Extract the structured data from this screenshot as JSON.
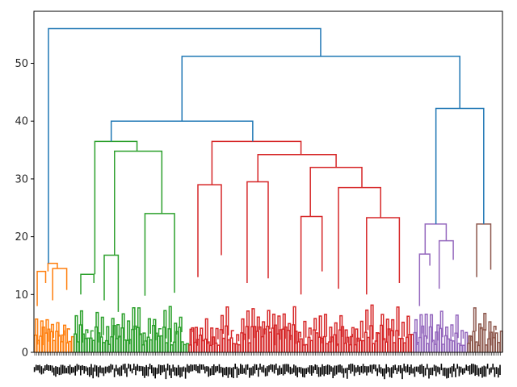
{
  "chart_data": {
    "type": "dendrogram",
    "title": "",
    "xlabel": "",
    "ylabel": "",
    "ylim": [
      0,
      59
    ],
    "yticks": [
      0,
      10,
      20,
      30,
      40,
      50
    ],
    "grid": false,
    "above_threshold_color": "#1f77b4",
    "clusters": [
      {
        "color": "#ff7f0e",
        "leaf_span": [
          0.0,
          0.085
        ]
      },
      {
        "color": "#2ca02c",
        "leaf_span": [
          0.085,
          0.33
        ]
      },
      {
        "color": "#d62728",
        "leaf_span": [
          0.33,
          0.81
        ]
      },
      {
        "color": "#9467bd",
        "leaf_span": [
          0.81,
          0.925
        ]
      },
      {
        "color": "#8c564b",
        "leaf_span": [
          0.925,
          1.0
        ]
      }
    ],
    "merges": [
      {
        "name": "orange-top",
        "color": "#ff7f0e",
        "height": 15.4,
        "left": {
          "x": 0.03,
          "h": 14.0
        },
        "right": {
          "x": 0.05,
          "h": 14.5
        }
      },
      {
        "name": "orange-left",
        "color": "#ff7f0e",
        "height": 14.0,
        "left": {
          "x": 0.007,
          "h": 8.0
        },
        "right": {
          "x": 0.025,
          "h": 12.0
        }
      },
      {
        "name": "orange-right",
        "color": "#ff7f0e",
        "height": 14.5,
        "left": {
          "x": 0.04,
          "h": 9.0
        },
        "right": {
          "x": 0.07,
          "h": 10.8
        }
      },
      {
        "name": "green-top",
        "color": "#2ca02c",
        "height": 36.5,
        "left": {
          "x": 0.13,
          "h": 13.5
        },
        "right": {
          "x": 0.22,
          "h": 34.8
        }
      },
      {
        "name": "green-left",
        "color": "#2ca02c",
        "height": 13.5,
        "left": {
          "x": 0.1,
          "h": 10.0
        },
        "right": {
          "x": 0.128,
          "h": 12.0
        }
      },
      {
        "name": "green-right",
        "color": "#2ca02c",
        "height": 34.8,
        "left": {
          "x": 0.172,
          "h": 16.8
        },
        "right": {
          "x": 0.273,
          "h": 24.0
        }
      },
      {
        "name": "green-mid",
        "color": "#2ca02c",
        "height": 16.8,
        "left": {
          "x": 0.15,
          "h": 9.0
        },
        "right": {
          "x": 0.18,
          "h": 7.0
        }
      },
      {
        "name": "green-mid-right",
        "color": "#2ca02c",
        "height": 24.0,
        "left": {
          "x": 0.237,
          "h": 9.8
        },
        "right": {
          "x": 0.3,
          "h": 10.3
        }
      },
      {
        "name": "red-top",
        "color": "#d62728",
        "height": 36.5,
        "left": {
          "x": 0.38,
          "h": 29.0
        },
        "right": {
          "x": 0.57,
          "h": 34.2
        }
      },
      {
        "name": "red-left",
        "color": "#d62728",
        "height": 29.0,
        "left": {
          "x": 0.35,
          "h": 13.0
        },
        "right": {
          "x": 0.4,
          "h": 16.8
        }
      },
      {
        "name": "red-right",
        "color": "#d62728",
        "height": 34.2,
        "left": {
          "x": 0.478,
          "h": 29.5
        },
        "right": {
          "x": 0.645,
          "h": 32.0
        }
      },
      {
        "name": "red-mid",
        "color": "#d62728",
        "height": 29.5,
        "left": {
          "x": 0.455,
          "h": 12.0
        },
        "right": {
          "x": 0.5,
          "h": 12.8
        }
      },
      {
        "name": "red-right2",
        "color": "#d62728",
        "height": 32.0,
        "left": {
          "x": 0.59,
          "h": 23.5
        },
        "right": {
          "x": 0.7,
          "h": 28.5
        }
      },
      {
        "name": "red-r3a",
        "color": "#d62728",
        "height": 23.5,
        "left": {
          "x": 0.57,
          "h": 10.0
        },
        "right": {
          "x": 0.615,
          "h": 14.0
        }
      },
      {
        "name": "red-r3b",
        "color": "#d62728",
        "height": 28.5,
        "left": {
          "x": 0.65,
          "h": 11.0
        },
        "right": {
          "x": 0.74,
          "h": 23.3
        }
      },
      {
        "name": "red-r4",
        "color": "#d62728",
        "height": 23.3,
        "left": {
          "x": 0.71,
          "h": 10.0
        },
        "right": {
          "x": 0.78,
          "h": 12.0
        }
      },
      {
        "name": "purple-top",
        "color": "#9467bd",
        "height": 22.2,
        "left": {
          "x": 0.835,
          "h": 17.0
        },
        "right": {
          "x": 0.88,
          "h": 19.3
        }
      },
      {
        "name": "purple-left",
        "color": "#9467bd",
        "height": 17.0,
        "left": {
          "x": 0.823,
          "h": 8.0
        },
        "right": {
          "x": 0.845,
          "h": 15.0
        }
      },
      {
        "name": "purple-right",
        "color": "#9467bd",
        "height": 19.3,
        "left": {
          "x": 0.865,
          "h": 11.0
        },
        "right": {
          "x": 0.895,
          "h": 16.0
        }
      },
      {
        "name": "brown-top",
        "color": "#8c564b",
        "height": 22.2,
        "left": {
          "x": 0.945,
          "h": 13.0
        },
        "right": {
          "x": 0.975,
          "h": 14.3
        }
      },
      {
        "name": "upper-1",
        "color": "#1f77b4",
        "height": 40.0,
        "left": {
          "x": 0.165,
          "h": 36.5
        },
        "right": {
          "x": 0.467,
          "h": 36.5
        }
      },
      {
        "name": "upper-2",
        "color": "#1f77b4",
        "height": 42.2,
        "left": {
          "x": 0.858,
          "h": 22.2
        },
        "right": {
          "x": 0.96,
          "h": 22.2
        }
      },
      {
        "name": "upper-3",
        "color": "#1f77b4",
        "height": 51.2,
        "left": {
          "x": 0.316,
          "h": 40.0
        },
        "right": {
          "x": 0.909,
          "h": 42.2
        }
      },
      {
        "name": "root",
        "color": "#1f77b4",
        "height": 56.0,
        "left": {
          "x": 0.031,
          "h": 15.4
        },
        "right": {
          "x": 0.612,
          "h": 51.2
        }
      }
    ]
  }
}
